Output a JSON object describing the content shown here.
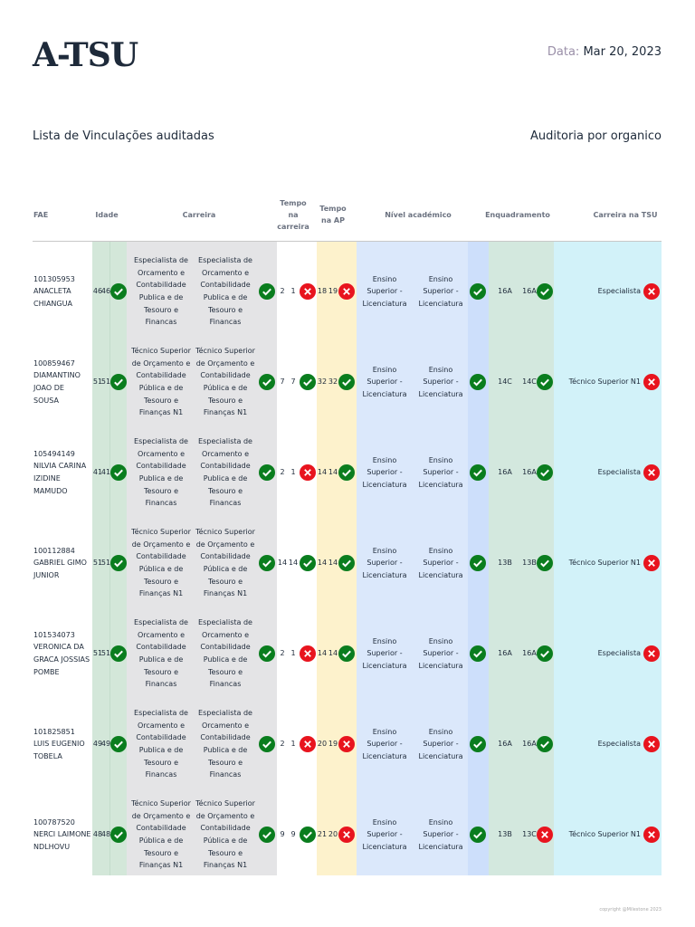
{
  "header": {
    "title": "A-TSU",
    "date_label": "Data:",
    "date": "Mar 20, 2023"
  },
  "subtitle_left": "Lista de Vinculações auditadas",
  "subtitle_right": "Auditoria por organico",
  "table": {
    "columns": [
      "FAE",
      "Idade",
      "Carreira",
      "Tempo na carreira",
      "Tempo na AP",
      "Nível académico",
      "Enquadramento",
      "Carreira na TSU"
    ],
    "rows": [
      {
        "fae": "101305953 ANACLETA CHIANGUA",
        "idade": {
          "values": [
            46,
            46
          ],
          "ok": true
        },
        "carreira": {
          "values": [
            "Especialista de Orcamento e Contabilidade Publica e de Tesouro e Financas",
            "Especialista de Orcamento e Contabilidade Publica e de Tesouro e Financas"
          ],
          "ok": true
        },
        "tempo_carreira": {
          "values": [
            2,
            1
          ],
          "ok": false
        },
        "tempo_ap": {
          "values": [
            18,
            19
          ],
          "ok": false
        },
        "nivel": {
          "values": [
            "Ensino Superior - Licenciatura",
            "Ensino Superior - Licenciatura"
          ],
          "ok": true
        },
        "enquadramento": {
          "values": [
            "16A",
            "16A"
          ],
          "ok": true
        },
        "carreira_tsu": {
          "value": "Especialista",
          "ok": false
        }
      },
      {
        "fae": "100859467 DIAMANTINO JOAO DE SOUSA",
        "idade": {
          "values": [
            51,
            51
          ],
          "ok": true
        },
        "carreira": {
          "values": [
            "Técnico Superior de Orçamento e Contabilidade Pública e de Tesouro e Finanças N1",
            "Técnico Superior de Orçamento e Contabilidade Pública e de Tesouro e Finanças N1"
          ],
          "ok": true
        },
        "tempo_carreira": {
          "values": [
            7,
            7
          ],
          "ok": true
        },
        "tempo_ap": {
          "values": [
            32,
            32
          ],
          "ok": true
        },
        "nivel": {
          "values": [
            "Ensino Superior - Licenciatura",
            "Ensino Superior - Licenciatura"
          ],
          "ok": true
        },
        "enquadramento": {
          "values": [
            "14C",
            "14C"
          ],
          "ok": true
        },
        "carreira_tsu": {
          "value": "Técnico Superior N1",
          "ok": false
        }
      },
      {
        "fae": "105494149 NILVIA CARINA IZIDINE MAMUDO",
        "idade": {
          "values": [
            41,
            41
          ],
          "ok": true
        },
        "carreira": {
          "values": [
            "Especialista de Orcamento e Contabilidade Publica e de Tesouro e Financas",
            "Especialista de Orcamento e Contabilidade Publica e de Tesouro e Financas"
          ],
          "ok": true
        },
        "tempo_carreira": {
          "values": [
            2,
            1
          ],
          "ok": false
        },
        "tempo_ap": {
          "values": [
            14,
            14
          ],
          "ok": true
        },
        "nivel": {
          "values": [
            "Ensino Superior - Licenciatura",
            "Ensino Superior - Licenciatura"
          ],
          "ok": true
        },
        "enquadramento": {
          "values": [
            "16A",
            "16A"
          ],
          "ok": true
        },
        "carreira_tsu": {
          "value": "Especialista",
          "ok": false
        }
      },
      {
        "fae": "100112884 GABRIEL GIMO JUNIOR",
        "idade": {
          "values": [
            51,
            51
          ],
          "ok": true
        },
        "carreira": {
          "values": [
            "Técnico Superior de Orçamento e Contabilidade Pública e de Tesouro e Finanças N1",
            "Técnico Superior de Orçamento e Contabilidade Pública e de Tesouro e Finanças N1"
          ],
          "ok": true
        },
        "tempo_carreira": {
          "values": [
            14,
            14
          ],
          "ok": true
        },
        "tempo_ap": {
          "values": [
            14,
            14
          ],
          "ok": true
        },
        "nivel": {
          "values": [
            "Ensino Superior - Licenciatura",
            "Ensino Superior - Licenciatura"
          ],
          "ok": true
        },
        "enquadramento": {
          "values": [
            "13B",
            "13B"
          ],
          "ok": true
        },
        "carreira_tsu": {
          "value": "Técnico Superior N1",
          "ok": false
        }
      },
      {
        "fae": "101534073 VERONICA DA GRACA JOSSIAS POMBE",
        "idade": {
          "values": [
            51,
            51
          ],
          "ok": true
        },
        "carreira": {
          "values": [
            "Especialista de Orcamento e Contabilidade Publica e de Tesouro e Financas",
            "Especialista de Orcamento e Contabilidade Publica e de Tesouro e Financas"
          ],
          "ok": true
        },
        "tempo_carreira": {
          "values": [
            2,
            1
          ],
          "ok": false
        },
        "tempo_ap": {
          "values": [
            14,
            14
          ],
          "ok": true
        },
        "nivel": {
          "values": [
            "Ensino Superior - Licenciatura",
            "Ensino Superior - Licenciatura"
          ],
          "ok": true
        },
        "enquadramento": {
          "values": [
            "16A",
            "16A"
          ],
          "ok": true
        },
        "carreira_tsu": {
          "value": "Especialista",
          "ok": false
        }
      },
      {
        "fae": "101825851 LUIS EUGENIO TOBELA",
        "idade": {
          "values": [
            49,
            49
          ],
          "ok": true
        },
        "carreira": {
          "values": [
            "Especialista de Orcamento e Contabilidade Publica e de Tesouro e Financas",
            "Especialista de Orcamento e Contabilidade Publica e de Tesouro e Financas"
          ],
          "ok": true
        },
        "tempo_carreira": {
          "values": [
            2,
            1
          ],
          "ok": false
        },
        "tempo_ap": {
          "values": [
            20,
            19
          ],
          "ok": false
        },
        "nivel": {
          "values": [
            "Ensino Superior - Licenciatura",
            "Ensino Superior - Licenciatura"
          ],
          "ok": true
        },
        "enquadramento": {
          "values": [
            "16A",
            "16A"
          ],
          "ok": true
        },
        "carreira_tsu": {
          "value": "Especialista",
          "ok": false
        }
      },
      {
        "fae": "100787520 NERCI LAIMONE NDLHOVU",
        "idade": {
          "values": [
            48,
            48
          ],
          "ok": true
        },
        "carreira": {
          "values": [
            "Técnico Superior de Orçamento e Contabilidade Pública e de Tesouro e Finanças N1",
            "Técnico Superior de Orçamento e Contabilidade Pública e de Tesouro e Finanças N1"
          ],
          "ok": true
        },
        "tempo_carreira": {
          "values": [
            9,
            9
          ],
          "ok": true
        },
        "tempo_ap": {
          "values": [
            21,
            20
          ],
          "ok": false
        },
        "nivel": {
          "values": [
            "Ensino Superior - Licenciatura",
            "Ensino Superior - Licenciatura"
          ],
          "ok": true
        },
        "enquadramento": {
          "values": [
            "13B",
            "13C"
          ],
          "ok": false
        },
        "carreira_tsu": {
          "value": "Técnico Superior N1",
          "ok": false
        }
      }
    ]
  },
  "footer": "copyright @Milestone 2023"
}
